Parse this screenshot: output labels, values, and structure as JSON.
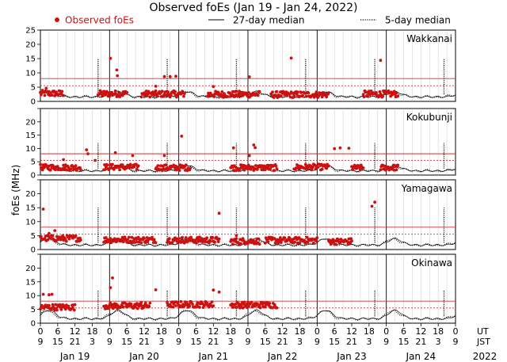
{
  "chart_data": {
    "type": "scatter",
    "title": "Observed foEs (Jan 19 - Jan 24, 2022)",
    "ylabel": "foEs (MHz)",
    "ylim": [
      0,
      25
    ],
    "yticks": [
      0,
      5,
      10,
      15,
      20,
      25
    ],
    "legend": {
      "observed": "Observed foEs",
      "median27": "27-day median",
      "median5": "5-day median"
    },
    "colors": {
      "observed": "#cc1111",
      "threshold": "#cc3333",
      "median": "#000000",
      "grid": "#bbbbbb"
    },
    "thresholds": [
      5.5,
      8
    ],
    "x_hours": 144,
    "x_tick_hours": [
      0,
      6,
      12,
      18,
      24,
      30,
      36,
      42,
      48,
      54,
      60,
      66,
      72,
      78,
      84,
      90,
      96,
      102,
      108,
      114,
      120,
      126,
      132,
      138,
      144
    ],
    "ut_tick_labels": [
      "0",
      "6",
      "12",
      "18",
      "0",
      "6",
      "12",
      "18",
      "0",
      "6",
      "12",
      "18",
      "0",
      "6",
      "12",
      "18",
      "0",
      "6",
      "12",
      "18",
      "0",
      "6",
      "12",
      "18",
      "0"
    ],
    "jst_tick_labels": [
      "9",
      "15",
      "21",
      "3",
      "9",
      "15",
      "21",
      "3",
      "9",
      "15",
      "21",
      "3",
      "9",
      "15",
      "21",
      "3",
      "9",
      "15",
      "21",
      "3",
      "9",
      "15",
      "21",
      "3",
      "9"
    ],
    "ut_label": "UT",
    "jst_label": "JST",
    "days": [
      "Jan 19",
      "Jan 20",
      "Jan 21",
      "Jan 22",
      "Jan 23",
      "Jan 24"
    ],
    "year": "2022",
    "stations": [
      {
        "name": "Wakkanai",
        "median_peak": 3.3,
        "median_jumps_hours": [
          20,
          44,
          68,
          92,
          116,
          140
        ],
        "observed_segments": [
          [
            0,
            8,
            2.8
          ],
          [
            20,
            30,
            2.7
          ],
          [
            35,
            50,
            2.6
          ],
          [
            58,
            76,
            2.5
          ],
          [
            80,
            100,
            2.4
          ],
          [
            112,
            124,
            2.6
          ]
        ],
        "spikes": [
          [
            24.3,
            15.1
          ],
          [
            26.5,
            11
          ],
          [
            26.7,
            9
          ],
          [
            43,
            8.7
          ],
          [
            45,
            8.7
          ],
          [
            47,
            8.8
          ],
          [
            72.5,
            8.6
          ],
          [
            87,
            15.2
          ],
          [
            118,
            14.4
          ],
          [
            40,
            5.3
          ],
          [
            60,
            5.2
          ],
          [
            2,
            4.6
          ]
        ]
      },
      {
        "name": "Kokubunji",
        "median_peak": 3.6,
        "median_jumps_hours": [
          20,
          44,
          68,
          92,
          116,
          140
        ],
        "observed_segments": [
          [
            0,
            14,
            2.9
          ],
          [
            22,
            34,
            3.0
          ],
          [
            40,
            52,
            2.8
          ],
          [
            66,
            82,
            2.8
          ],
          [
            88,
            100,
            3.0
          ],
          [
            108,
            112,
            2.7
          ],
          [
            118,
            124,
            2.8
          ]
        ],
        "spikes": [
          [
            16,
            9.5
          ],
          [
            16.5,
            8.0
          ],
          [
            26,
            8.4
          ],
          [
            32,
            7.3
          ],
          [
            43,
            7.3
          ],
          [
            49,
            14.6
          ],
          [
            67,
            10.2
          ],
          [
            72.5,
            7.3
          ],
          [
            74,
            11.3
          ],
          [
            74.5,
            10.3
          ],
          [
            102,
            9.9
          ],
          [
            104,
            10.2
          ],
          [
            107,
            10.1
          ],
          [
            19,
            5.5
          ],
          [
            8,
            5.8
          ]
        ]
      },
      {
        "name": "Yamagawa",
        "median_peak": 4.2,
        "median_jumps_hours": [
          20,
          44,
          68,
          92,
          116,
          140
        ],
        "observed_segments": [
          [
            0,
            14,
            4.0
          ],
          [
            22,
            40,
            3.5
          ],
          [
            44,
            62,
            3.4
          ],
          [
            66,
            76,
            3.0
          ],
          [
            78,
            96,
            3.3
          ],
          [
            100,
            108,
            2.9
          ]
        ],
        "spikes": [
          [
            1,
            14.5
          ],
          [
            62,
            13.0
          ],
          [
            68,
            5.0
          ],
          [
            116,
            17.0
          ],
          [
            115,
            15.5
          ],
          [
            5,
            6.8
          ],
          [
            3,
            5.8
          ]
        ]
      },
      {
        "name": "Okinawa",
        "median_peak": 5.6,
        "median_jumps_hours": [
          20,
          44,
          68,
          92,
          116,
          140
        ],
        "observed_segments": [
          [
            0,
            12,
            5.8
          ],
          [
            22,
            38,
            6.3
          ],
          [
            44,
            60,
            6.8
          ],
          [
            66,
            82,
            6.6
          ]
        ],
        "spikes": [
          [
            1,
            10.5
          ],
          [
            3,
            10.3
          ],
          [
            4,
            10.5
          ],
          [
            25,
            16.4
          ],
          [
            24.3,
            12.9
          ],
          [
            40,
            12.1
          ],
          [
            60,
            12.0
          ],
          [
            62,
            11.3
          ],
          [
            35,
            7.5
          ],
          [
            78,
            7.3
          ]
        ]
      }
    ]
  }
}
